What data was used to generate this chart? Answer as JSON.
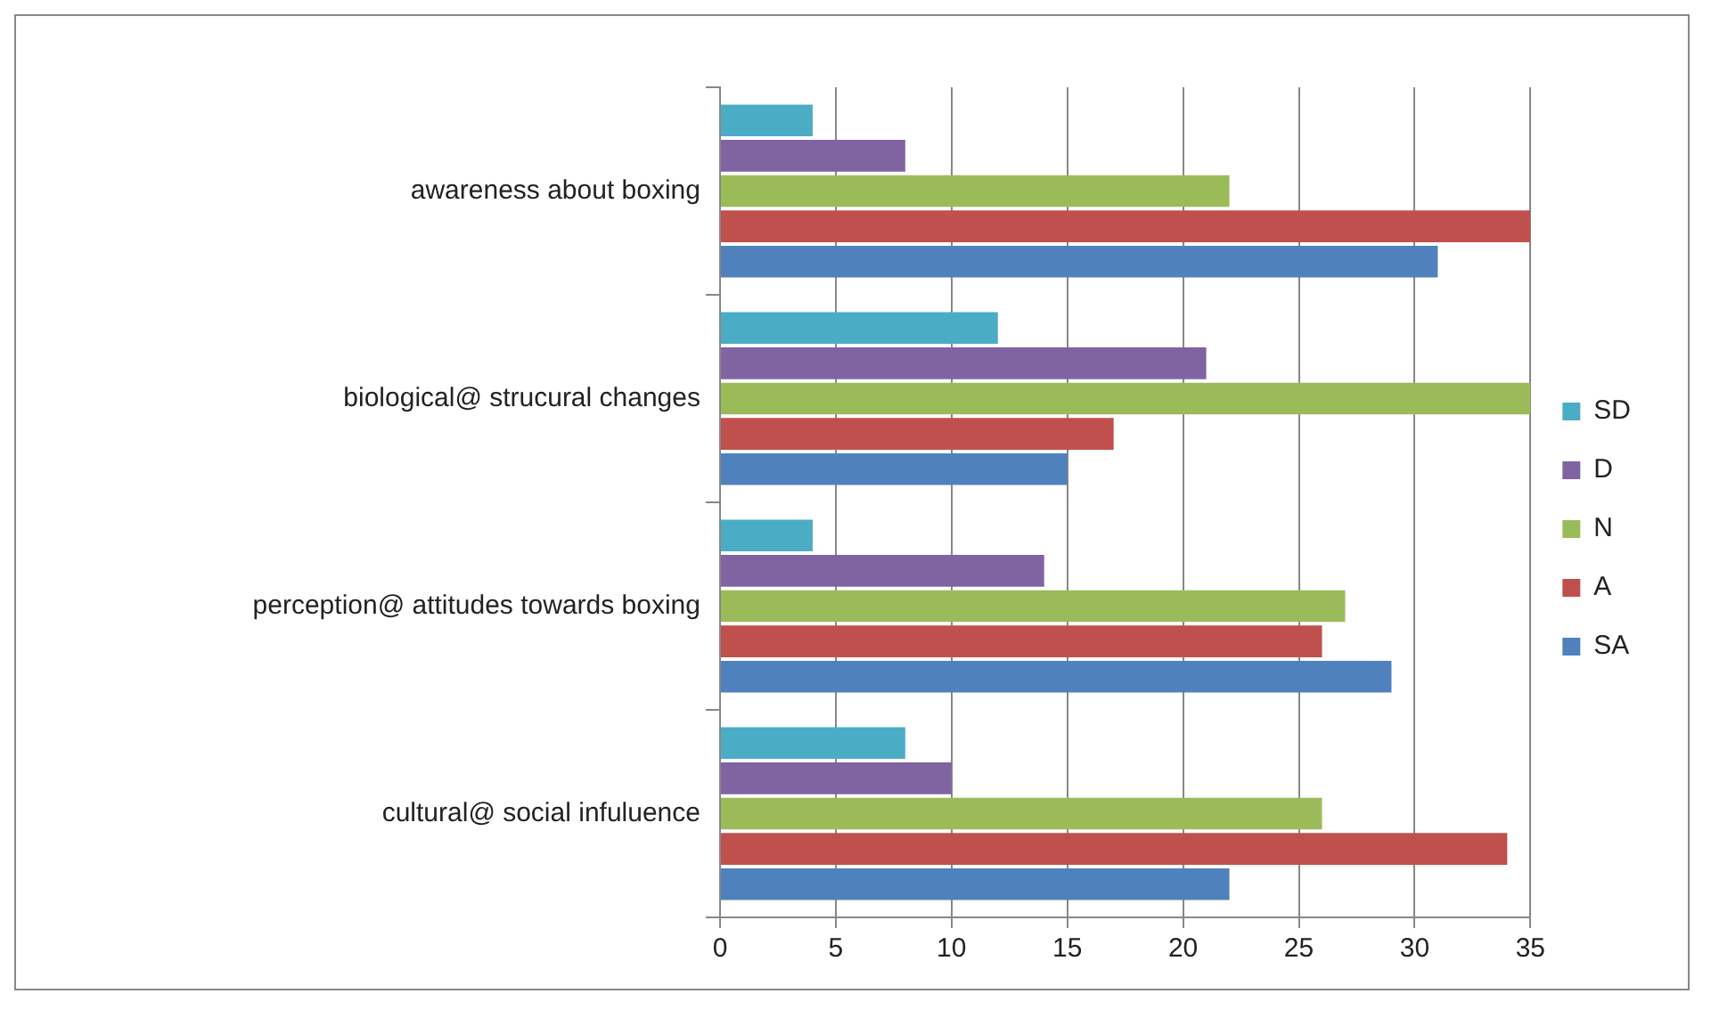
{
  "chart_data": {
    "type": "bar",
    "orientation": "horizontal",
    "categories": [
      "awareness about boxing",
      "biological@ strucural changes",
      "perception@ attitudes towards boxing",
      "cultural@ social infuluence"
    ],
    "series": [
      {
        "name": "SD",
        "color": "#4bacc6",
        "values": [
          4,
          12,
          4,
          8
        ]
      },
      {
        "name": "D",
        "color": "#8064a2",
        "values": [
          8,
          21,
          14,
          10
        ]
      },
      {
        "name": "N",
        "color": "#9bbb59",
        "values": [
          22,
          35,
          27,
          26
        ]
      },
      {
        "name": "A",
        "color": "#c0504d",
        "values": [
          35,
          17,
          26,
          34
        ]
      },
      {
        "name": "SA",
        "color": "#4f81bd",
        "values": [
          31,
          15,
          29,
          22
        ]
      }
    ],
    "xlim": [
      0,
      35
    ],
    "xticks": [
      0,
      5,
      10,
      15,
      20,
      25,
      30,
      35
    ],
    "grid": "x",
    "legend": "right"
  }
}
